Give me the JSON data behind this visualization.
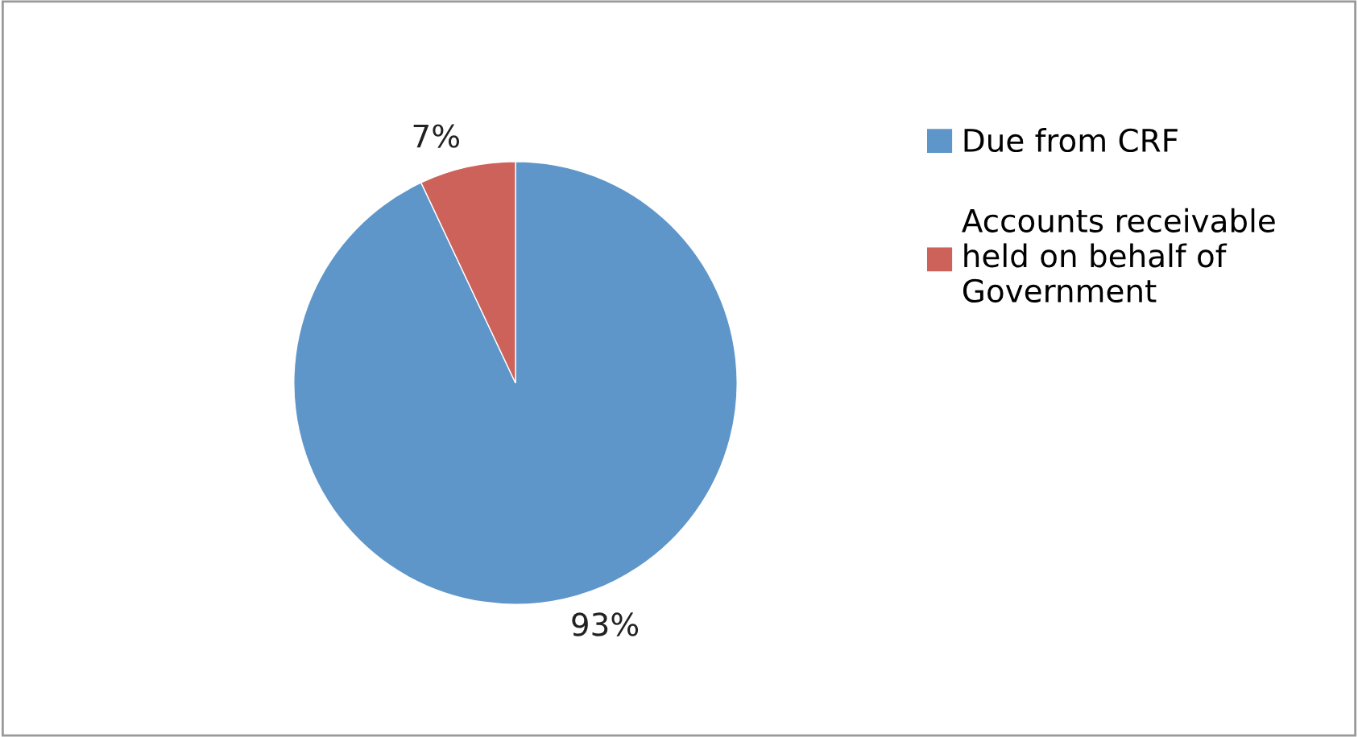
{
  "chart_data": {
    "type": "pie",
    "categories": [
      "Due from CRF",
      "Accounts receivable held on behalf of Government"
    ],
    "values": [
      93,
      7
    ],
    "colors": [
      "#5f96c9",
      "#cc625a"
    ],
    "value_labels": [
      "93%",
      "7%"
    ],
    "legend": "right"
  }
}
